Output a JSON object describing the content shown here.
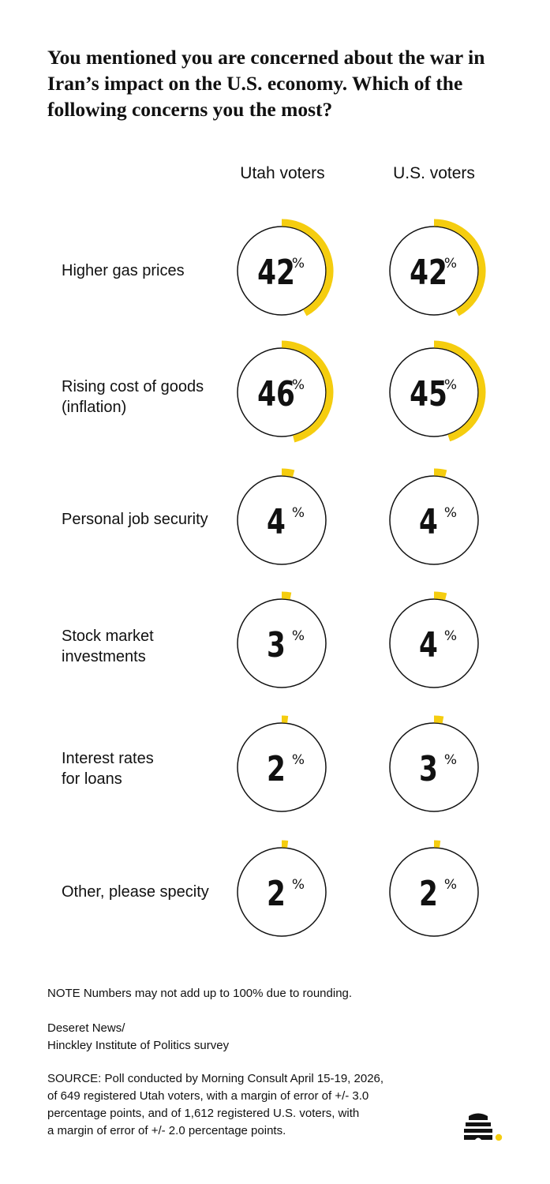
{
  "title": "You mentioned you are concerned about the war in Iran’s impact on the U.S. economy. Which of the following concerns you the most?",
  "chart_data": {
    "type": "donut-grid",
    "columns": [
      "Utah voters",
      "U.S. voters"
    ],
    "unit": "%",
    "rows": [
      {
        "label": "Higher gas prices",
        "values": [
          42,
          42
        ]
      },
      {
        "label": "Rising cost of goods\n(inflation)",
        "values": [
          46,
          45
        ]
      },
      {
        "label": "Personal job security",
        "values": [
          4,
          4
        ]
      },
      {
        "label": "Stock market\ninvestments",
        "values": [
          3,
          4
        ]
      },
      {
        "label": "Interest rates\nfor loans",
        "values": [
          2,
          3
        ]
      },
      {
        "label": "Other, please specity",
        "values": [
          2,
          2
        ]
      }
    ],
    "colors": {
      "arc": "#F5CD0F",
      "ring": "#111111"
    }
  },
  "note": "NOTE Numbers may not add up to 100% due to rounding.",
  "credit": "Deseret News/\nHinckley Institute of Politics survey",
  "source": "SOURCE: Poll conducted by Morning Consult April 15-19, 2026,\nof 649 registered Utah voters, with a margin of error of +/- 3.0\npercentage points, and of 1,612 registered U.S. voters, with\na margin of error of +/- 2.0 percentage points.",
  "logo": {
    "icon": "beehive-icon",
    "accent": "#F5CD0F"
  }
}
